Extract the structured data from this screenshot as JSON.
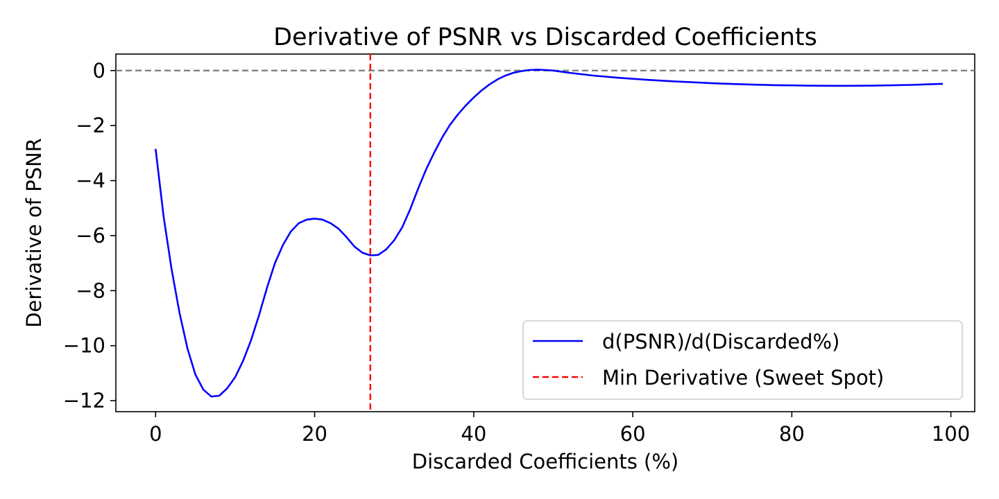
{
  "chart_data": {
    "type": "line",
    "title": "Derivative of PSNR vs Discarded Coefficients",
    "xlabel": "Discarded Coefficients (%)",
    "ylabel": "Derivative of PSNR",
    "xlim": [
      -5,
      103
    ],
    "ylim": [
      -12.4,
      0.6
    ],
    "xticks": [
      0,
      20,
      40,
      60,
      80,
      100
    ],
    "yticks": [
      0,
      -2,
      -4,
      -6,
      -8,
      -10,
      -12
    ],
    "xtick_labels": [
      "0",
      "20",
      "40",
      "60",
      "80",
      "100"
    ],
    "ytick_labels": [
      "0",
      "−2",
      "−4",
      "−6",
      "−8",
      "−10",
      "−12"
    ],
    "grid": false,
    "legend_position": "lower-right",
    "series": [
      {
        "name": "d(PSNR)/d(Discarded%)",
        "color": "#0000ff",
        "style": "solid",
        "x": [
          0,
          1,
          2,
          3,
          4,
          5,
          6,
          7,
          8,
          9,
          10,
          11,
          12,
          13,
          14,
          15,
          16,
          17,
          18,
          19,
          20,
          21,
          22,
          23,
          24,
          25,
          26,
          27,
          28,
          29,
          30,
          31,
          32,
          33,
          34,
          35,
          36,
          37,
          38,
          39,
          40,
          41,
          42,
          43,
          44,
          45,
          46,
          47,
          48,
          49,
          50,
          52,
          55,
          58,
          60,
          62,
          65,
          68,
          70,
          72,
          75,
          78,
          80,
          82,
          85,
          87,
          90,
          92,
          95,
          97,
          99
        ],
        "y": [
          -2.85,
          -5.3,
          -7.2,
          -8.8,
          -10.1,
          -11.05,
          -11.6,
          -11.85,
          -11.82,
          -11.55,
          -11.15,
          -10.55,
          -9.8,
          -8.9,
          -7.9,
          -7.0,
          -6.35,
          -5.85,
          -5.55,
          -5.42,
          -5.38,
          -5.42,
          -5.55,
          -5.75,
          -6.05,
          -6.4,
          -6.62,
          -6.72,
          -6.7,
          -6.5,
          -6.17,
          -5.7,
          -5.05,
          -4.3,
          -3.6,
          -3.0,
          -2.45,
          -1.98,
          -1.6,
          -1.27,
          -0.98,
          -0.72,
          -0.5,
          -0.32,
          -0.18,
          -0.08,
          -0.02,
          0.02,
          0.03,
          0.02,
          0.0,
          -0.08,
          -0.18,
          -0.26,
          -0.3,
          -0.34,
          -0.39,
          -0.43,
          -0.46,
          -0.48,
          -0.51,
          -0.53,
          -0.54,
          -0.55,
          -0.555,
          -0.555,
          -0.55,
          -0.54,
          -0.52,
          -0.5,
          -0.48
        ]
      },
      {
        "name": "Min Derivative (Sweet Spot)",
        "color": "#ff0000",
        "style": "dashed",
        "orientation": "vertical",
        "x_value": 27
      }
    ],
    "reference_line": {
      "orientation": "horizontal",
      "y_value": 0,
      "color": "#808080",
      "style": "dashed"
    }
  }
}
